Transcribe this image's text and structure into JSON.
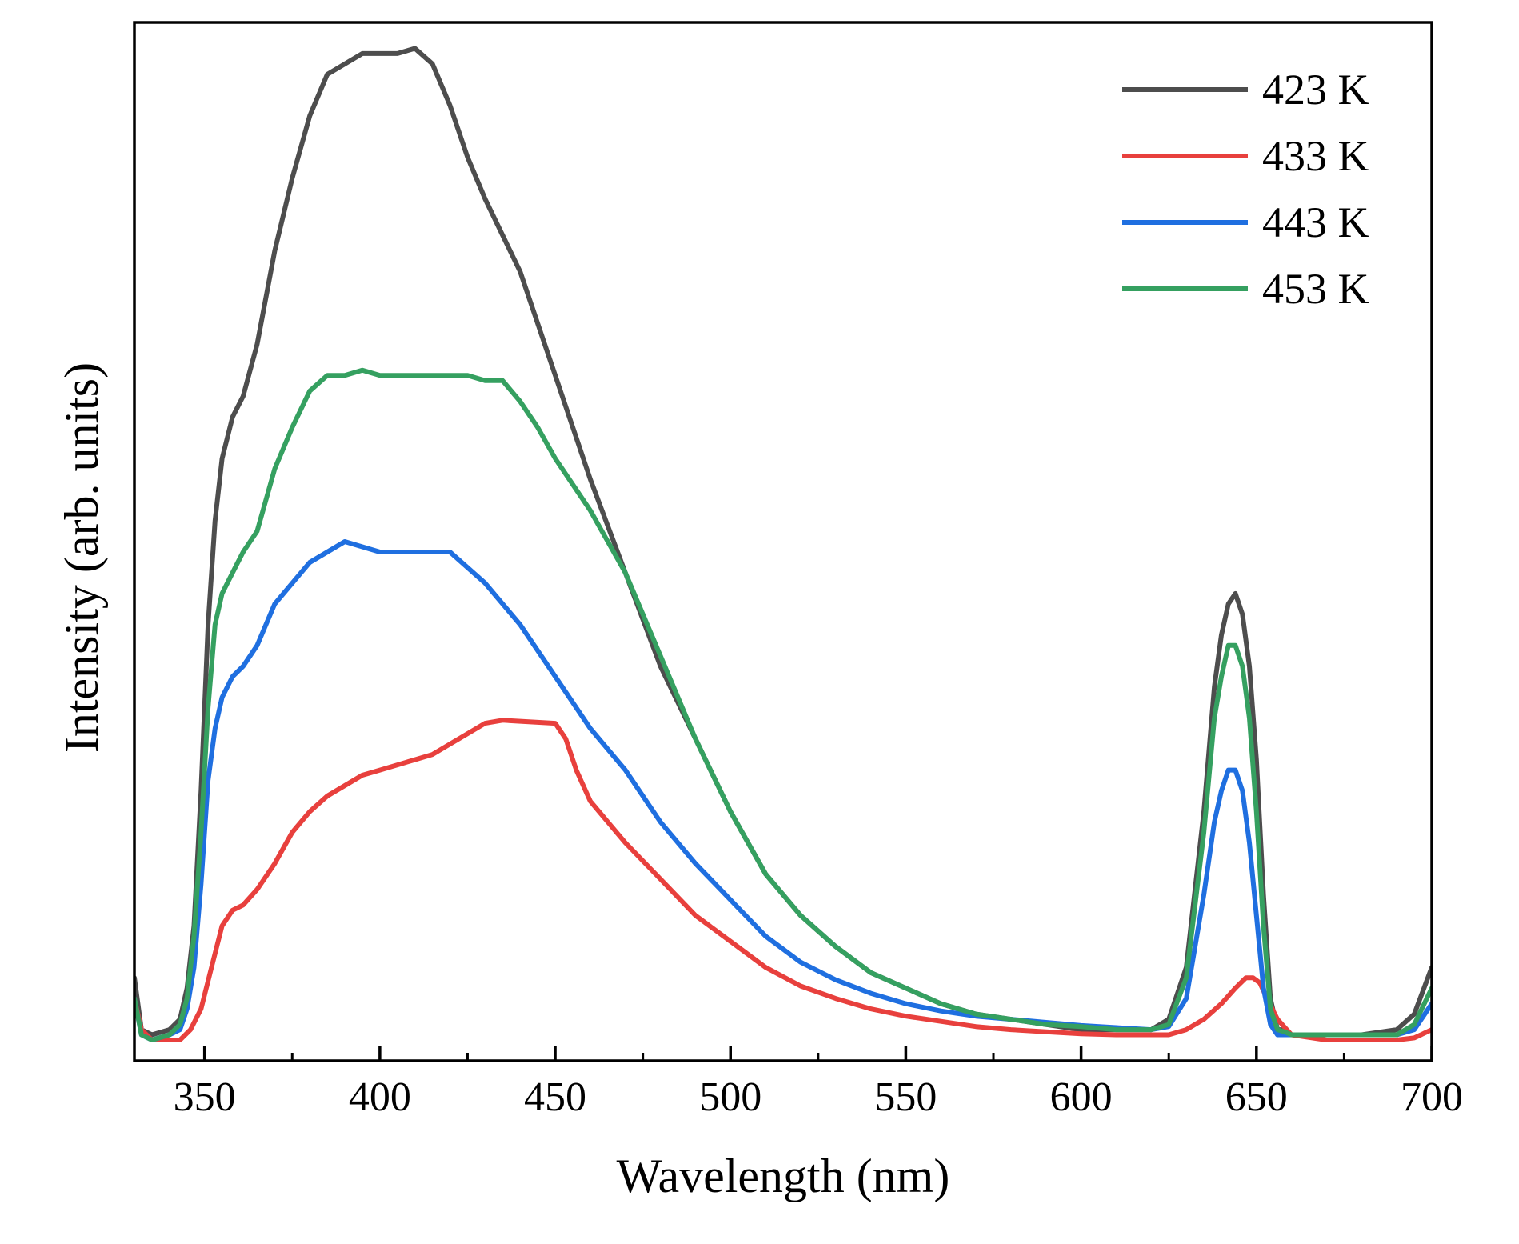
{
  "chart_data": {
    "type": "line",
    "title": "",
    "xlabel": "Wavelength (nm)",
    "ylabel": "Intensity (arb. units)",
    "xlim": [
      330,
      700
    ],
    "ylim": [
      0,
      1
    ],
    "x_ticks": [
      350,
      400,
      450,
      500,
      550,
      600,
      650,
      700
    ],
    "x_tick_labels": [
      "350",
      "400",
      "450",
      "500",
      "550",
      "600",
      "650",
      "700"
    ],
    "x_minor_ticks": [
      375,
      425,
      475,
      525,
      575,
      625,
      675
    ],
    "y_ticks_shown": false,
    "grid": false,
    "legend_position": "top-right",
    "series": [
      {
        "name": "423 K",
        "color": "#4d4d4d",
        "x": [
          330,
          332,
          335,
          340,
          343,
          345,
          347,
          349,
          351,
          353,
          355,
          358,
          361,
          365,
          370,
          375,
          380,
          385,
          390,
          395,
          400,
          405,
          410,
          415,
          420,
          425,
          430,
          440,
          450,
          460,
          470,
          480,
          490,
          500,
          510,
          520,
          530,
          540,
          550,
          560,
          570,
          580,
          590,
          600,
          610,
          620,
          625,
          630,
          635,
          638,
          640,
          642,
          644,
          646,
          648,
          650,
          652,
          654,
          656,
          658,
          660,
          665,
          670,
          680,
          690,
          695,
          700
        ],
        "y": [
          0.08,
          0.03,
          0.025,
          0.03,
          0.04,
          0.07,
          0.13,
          0.26,
          0.42,
          0.52,
          0.58,
          0.62,
          0.64,
          0.69,
          0.78,
          0.85,
          0.91,
          0.95,
          0.96,
          0.97,
          0.97,
          0.97,
          0.975,
          0.96,
          0.92,
          0.87,
          0.83,
          0.76,
          0.66,
          0.56,
          0.47,
          0.38,
          0.31,
          0.24,
          0.18,
          0.14,
          0.11,
          0.085,
          0.07,
          0.055,
          0.045,
          0.04,
          0.035,
          0.03,
          0.03,
          0.03,
          0.04,
          0.09,
          0.24,
          0.36,
          0.41,
          0.44,
          0.45,
          0.43,
          0.38,
          0.29,
          0.16,
          0.06,
          0.03,
          0.03,
          0.025,
          0.025,
          0.025,
          0.025,
          0.03,
          0.045,
          0.09
        ]
      },
      {
        "name": "433 K",
        "color": "#e8403d",
        "x": [
          330,
          332,
          335,
          340,
          343,
          346,
          349,
          352,
          355,
          358,
          361,
          365,
          370,
          375,
          380,
          385,
          390,
          395,
          400,
          405,
          410,
          415,
          420,
          425,
          430,
          435,
          440,
          445,
          450,
          453,
          456,
          460,
          465,
          470,
          480,
          490,
          500,
          510,
          520,
          530,
          540,
          550,
          560,
          570,
          580,
          590,
          600,
          610,
          620,
          625,
          630,
          635,
          640,
          644,
          647,
          649,
          651,
          653,
          656,
          660,
          670,
          680,
          690,
          695,
          700
        ],
        "y": [
          0.06,
          0.03,
          0.02,
          0.02,
          0.02,
          0.03,
          0.05,
          0.09,
          0.13,
          0.145,
          0.15,
          0.165,
          0.19,
          0.22,
          0.24,
          0.255,
          0.265,
          0.275,
          0.28,
          0.285,
          0.29,
          0.295,
          0.305,
          0.315,
          0.325,
          0.328,
          0.327,
          0.326,
          0.325,
          0.31,
          0.28,
          0.25,
          0.23,
          0.21,
          0.175,
          0.14,
          0.115,
          0.09,
          0.072,
          0.06,
          0.05,
          0.043,
          0.038,
          0.033,
          0.03,
          0.028,
          0.026,
          0.025,
          0.025,
          0.025,
          0.03,
          0.04,
          0.055,
          0.07,
          0.08,
          0.08,
          0.075,
          0.06,
          0.04,
          0.025,
          0.02,
          0.02,
          0.02,
          0.022,
          0.03
        ]
      },
      {
        "name": "443 K",
        "color": "#1f6fe0",
        "x": [
          330,
          332,
          335,
          340,
          343,
          345,
          347,
          349,
          351,
          353,
          355,
          358,
          361,
          365,
          370,
          375,
          380,
          385,
          390,
          395,
          400,
          405,
          410,
          415,
          420,
          425,
          430,
          440,
          450,
          460,
          470,
          480,
          490,
          500,
          510,
          520,
          530,
          540,
          550,
          560,
          570,
          580,
          590,
          600,
          610,
          620,
          625,
          630,
          635,
          638,
          640,
          642,
          644,
          646,
          648,
          650,
          652,
          654,
          656,
          658,
          660,
          665,
          670,
          680,
          690,
          695,
          700
        ],
        "y": [
          0.06,
          0.025,
          0.02,
          0.025,
          0.03,
          0.05,
          0.09,
          0.17,
          0.27,
          0.32,
          0.35,
          0.37,
          0.38,
          0.4,
          0.44,
          0.46,
          0.48,
          0.49,
          0.5,
          0.495,
          0.49,
          0.49,
          0.49,
          0.49,
          0.49,
          0.475,
          0.46,
          0.42,
          0.37,
          0.32,
          0.28,
          0.23,
          0.19,
          0.155,
          0.12,
          0.095,
          0.078,
          0.065,
          0.055,
          0.048,
          0.043,
          0.04,
          0.037,
          0.034,
          0.032,
          0.03,
          0.033,
          0.06,
          0.16,
          0.23,
          0.26,
          0.28,
          0.28,
          0.26,
          0.21,
          0.14,
          0.07,
          0.035,
          0.025,
          0.025,
          0.025,
          0.025,
          0.025,
          0.025,
          0.025,
          0.03,
          0.055
        ]
      },
      {
        "name": "453 K",
        "color": "#35a060",
        "x": [
          330,
          332,
          335,
          340,
          343,
          345,
          347,
          349,
          351,
          353,
          355,
          358,
          361,
          365,
          370,
          375,
          380,
          385,
          390,
          395,
          400,
          405,
          410,
          415,
          420,
          425,
          430,
          435,
          440,
          445,
          450,
          460,
          470,
          480,
          490,
          500,
          510,
          520,
          530,
          540,
          550,
          560,
          570,
          580,
          590,
          600,
          610,
          620,
          625,
          630,
          635,
          638,
          640,
          642,
          644,
          646,
          648,
          650,
          652,
          654,
          656,
          658,
          660,
          665,
          670,
          680,
          690,
          695,
          700
        ],
        "y": [
          0.06,
          0.025,
          0.02,
          0.025,
          0.035,
          0.06,
          0.12,
          0.22,
          0.34,
          0.42,
          0.45,
          0.47,
          0.49,
          0.51,
          0.57,
          0.61,
          0.645,
          0.66,
          0.66,
          0.665,
          0.66,
          0.66,
          0.66,
          0.66,
          0.66,
          0.66,
          0.655,
          0.655,
          0.635,
          0.61,
          0.58,
          0.53,
          0.47,
          0.39,
          0.31,
          0.24,
          0.18,
          0.14,
          0.11,
          0.085,
          0.07,
          0.055,
          0.045,
          0.04,
          0.035,
          0.033,
          0.03,
          0.03,
          0.035,
          0.08,
          0.22,
          0.33,
          0.37,
          0.4,
          0.4,
          0.38,
          0.33,
          0.24,
          0.13,
          0.05,
          0.03,
          0.028,
          0.025,
          0.025,
          0.025,
          0.025,
          0.025,
          0.035,
          0.07
        ]
      }
    ]
  }
}
